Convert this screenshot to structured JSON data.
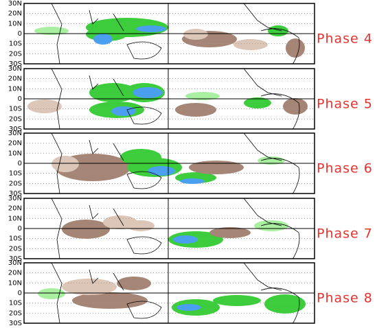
{
  "panels": [
    {
      "lat_labels": [
        "30N",
        "20N",
        "10N",
        "0",
        "10S",
        "20S",
        "30S"
      ],
      "phase": "Phase 4"
    },
    {
      "lat_labels": [
        "30N",
        "20N",
        "10N",
        "0",
        "10S",
        "20S",
        "30S"
      ],
      "phase": "Phase 5"
    },
    {
      "lat_labels": [
        "30N",
        "20N",
        "10N",
        "0",
        "10S",
        "20S",
        "30S"
      ],
      "phase": "Phase 6"
    },
    {
      "lat_labels": [
        "30N",
        "20N",
        "10N",
        "0",
        "10S",
        "20S",
        "30S"
      ],
      "phase": "Phase 7"
    },
    {
      "lat_labels": [
        "30N",
        "20N",
        "10N",
        "0",
        "10S",
        "20S",
        "30S"
      ],
      "phase": "Phase 8"
    }
  ]
}
